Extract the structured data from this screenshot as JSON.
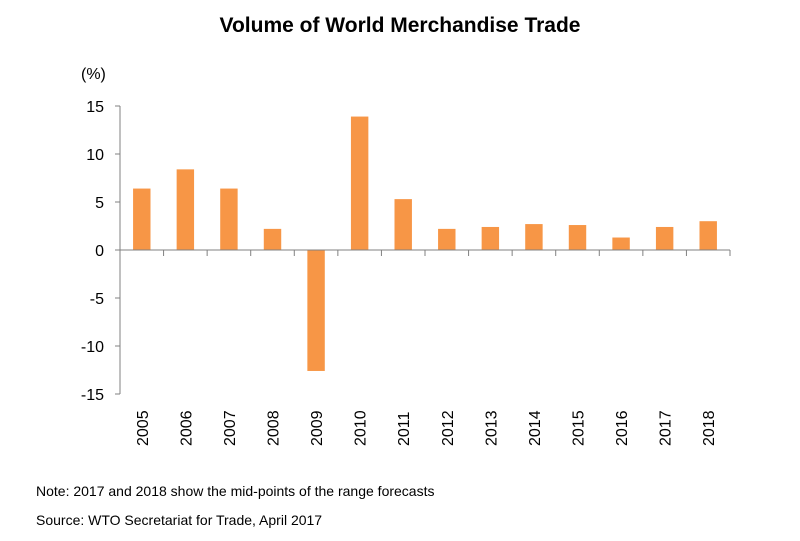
{
  "chart_data": {
    "type": "bar",
    "title": "Volume of World Merchandise Trade",
    "ylabel": "(%)",
    "xlabel": "",
    "categories": [
      "2005",
      "2006",
      "2007",
      "2008",
      "2009",
      "2010",
      "2011",
      "2012",
      "2013",
      "2014",
      "2015",
      "2016",
      "2017",
      "2018"
    ],
    "values": [
      6.4,
      8.4,
      6.4,
      2.2,
      -12.6,
      13.9,
      5.3,
      2.2,
      2.4,
      2.7,
      2.6,
      1.3,
      2.4,
      3.0
    ],
    "ylim": [
      -15,
      15
    ],
    "yticks": [
      15,
      10,
      5,
      0,
      -5,
      -10,
      -15
    ],
    "grid": false,
    "legend": "none",
    "bar_color": "#F79646"
  },
  "notes": {
    "note": "Note: 2017 and 2018 show the mid-points of the range forecasts",
    "source": "Source: WTO Secretariat for Trade, April 2017"
  }
}
